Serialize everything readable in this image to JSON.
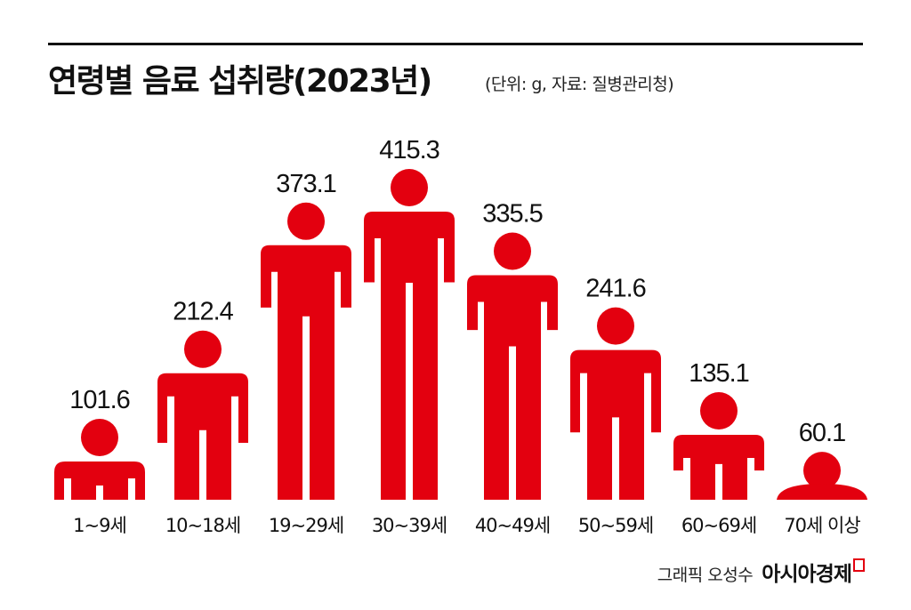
{
  "title": "연령별 음료 섭취량(2023년)",
  "subtitle": "(단위: g, 자료: 질병관리청)",
  "credit": "그래픽 오성수",
  "brand": "아시아경제",
  "colors": {
    "figure": "#e3000f",
    "rule": "#111111"
  },
  "chart_data": {
    "type": "bar",
    "title": "연령별 음료 섭취량(2023년)",
    "unit": "g",
    "source": "질병관리청",
    "categories": [
      "1~9세",
      "10~18세",
      "19~29세",
      "30~39세",
      "40~49세",
      "50~59세",
      "60~69세",
      "70세 이상"
    ],
    "values": [
      101.6,
      212.4,
      373.1,
      415.3,
      335.5,
      241.6,
      135.1,
      60.1
    ],
    "value_labels": [
      "101.6",
      "212.4",
      "373.1",
      "415.3",
      "335.5",
      "241.6",
      "135.1",
      "60.1"
    ],
    "ylim": [
      0,
      415.3
    ],
    "grid": false,
    "legend": "none",
    "mark": "person-pictogram"
  }
}
